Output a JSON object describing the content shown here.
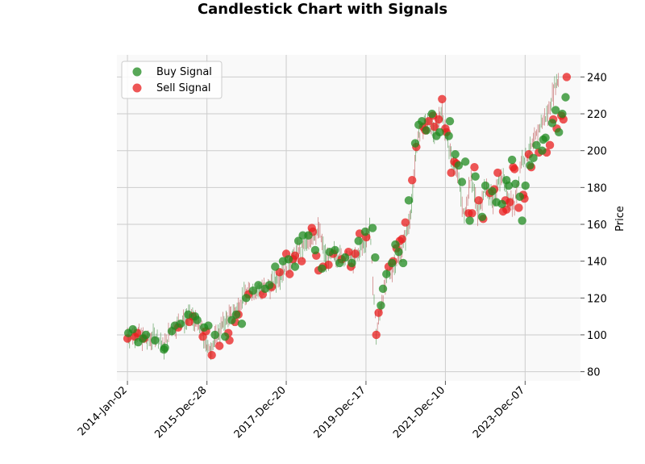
{
  "chart_data": {
    "type": "scatter",
    "title": "Candlestick Chart with Signals",
    "xlabel": "",
    "ylabel": "Price",
    "x_range": [
      "2013-09-28",
      "2025-04-25"
    ],
    "ylim": [
      75,
      252
    ],
    "y_ticks": [
      80,
      100,
      120,
      140,
      160,
      180,
      200,
      220,
      240
    ],
    "x_ticks": [
      "2014-Jan-02",
      "2015-Dec-28",
      "2017-Dec-20",
      "2019-Dec-17",
      "2021-Dec-10",
      "2023-Dec-07"
    ],
    "grid": true,
    "legend_position": "upper-left",
    "colors": {
      "buy": "#1f8a1f",
      "sell": "#e81e1e",
      "wick": "#555555",
      "plot_bg": "#f9f9f9",
      "grid": "#cccccc"
    },
    "price_path": [
      [
        "2014-01-02",
        100
      ],
      [
        "2014-04-01",
        101
      ],
      [
        "2014-07-01",
        97
      ],
      [
        "2014-10-01",
        99
      ],
      [
        "2014-12-01",
        93
      ],
      [
        "2015-02-01",
        103
      ],
      [
        "2015-05-01",
        107
      ],
      [
        "2015-08-01",
        110
      ],
      [
        "2015-11-01",
        103
      ],
      [
        "2016-01-15",
        91
      ],
      [
        "2016-03-01",
        96
      ],
      [
        "2016-06-01",
        107
      ],
      [
        "2016-09-01",
        112
      ],
      [
        "2016-12-01",
        121
      ],
      [
        "2017-03-01",
        124
      ],
      [
        "2017-06-01",
        125
      ],
      [
        "2017-09-01",
        128
      ],
      [
        "2017-12-01",
        136
      ],
      [
        "2018-02-01",
        140
      ],
      [
        "2018-05-01",
        146
      ],
      [
        "2018-08-01",
        152
      ],
      [
        "2018-10-15",
        157
      ],
      [
        "2018-12-20",
        140
      ],
      [
        "2019-03-01",
        144
      ],
      [
        "2019-06-01",
        142
      ],
      [
        "2019-09-01",
        140
      ],
      [
        "2019-12-01",
        150
      ],
      [
        "2020-01-20",
        158
      ],
      [
        "2020-03-20",
        100
      ],
      [
        "2020-05-01",
        116
      ],
      [
        "2020-07-01",
        132
      ],
      [
        "2020-09-01",
        138
      ],
      [
        "2020-11-01",
        146
      ],
      [
        "2021-01-01",
        157
      ],
      [
        "2021-02-15",
        175
      ],
      [
        "2021-03-15",
        200
      ],
      [
        "2021-05-01",
        212
      ],
      [
        "2021-07-01",
        215
      ],
      [
        "2021-09-01",
        210
      ],
      [
        "2021-11-01",
        222
      ],
      [
        "2021-12-15",
        210
      ],
      [
        "2022-02-01",
        195
      ],
      [
        "2022-04-01",
        188
      ],
      [
        "2022-06-01",
        163
      ],
      [
        "2022-08-01",
        188
      ],
      [
        "2022-10-01",
        165
      ],
      [
        "2022-12-01",
        180
      ],
      [
        "2023-03-01",
        172
      ],
      [
        "2023-05-01",
        188
      ],
      [
        "2023-07-01",
        175
      ],
      [
        "2023-09-01",
        170
      ],
      [
        "2023-11-01",
        195
      ],
      [
        "2024-01-01",
        198
      ],
      [
        "2024-03-01",
        205
      ],
      [
        "2024-05-01",
        215
      ],
      [
        "2024-07-01",
        220
      ],
      [
        "2024-09-01",
        235
      ],
      [
        "2024-10-15",
        240
      ]
    ],
    "series": [
      {
        "name": "Buy Signal",
        "points": [
          [
            "2014-01-10",
            101
          ],
          [
            "2014-02-20",
            103
          ],
          [
            "2014-04-10",
            96
          ],
          [
            "2014-05-20",
            98
          ],
          [
            "2014-06-20",
            100
          ],
          [
            "2014-09-10",
            97
          ],
          [
            "2014-12-01",
            92
          ],
          [
            "2014-12-10",
            93
          ],
          [
            "2015-02-10",
            102
          ],
          [
            "2015-03-10",
            105
          ],
          [
            "2015-05-01",
            106
          ],
          [
            "2015-07-10",
            111
          ],
          [
            "2015-09-10",
            110
          ],
          [
            "2015-10-01",
            108
          ],
          [
            "2015-12-01",
            104
          ],
          [
            "2016-01-10",
            105
          ],
          [
            "2016-03-10",
            100
          ],
          [
            "2016-06-10",
            99
          ],
          [
            "2016-08-10",
            108
          ],
          [
            "2016-09-20",
            111
          ],
          [
            "2016-11-10",
            106
          ],
          [
            "2016-12-20",
            120
          ],
          [
            "2017-02-20",
            124
          ],
          [
            "2017-04-10",
            127
          ],
          [
            "2017-06-10",
            125
          ],
          [
            "2017-07-20",
            127
          ],
          [
            "2017-09-10",
            137
          ],
          [
            "2017-11-20",
            140
          ],
          [
            "2018-01-10",
            141
          ],
          [
            "2018-03-10",
            137
          ],
          [
            "2018-04-10",
            151
          ],
          [
            "2018-05-20",
            154
          ],
          [
            "2018-07-10",
            154
          ],
          [
            "2018-09-10",
            146
          ],
          [
            "2018-11-10",
            136
          ],
          [
            "2019-01-20",
            145
          ],
          [
            "2019-03-10",
            146
          ],
          [
            "2019-04-20",
            139
          ],
          [
            "2019-06-10",
            142
          ],
          [
            "2019-08-10",
            139
          ],
          [
            "2019-10-10",
            151
          ],
          [
            "2019-12-10",
            156
          ],
          [
            "2020-02-15",
            158
          ],
          [
            "2020-03-10",
            142
          ],
          [
            "2020-05-01",
            116
          ],
          [
            "2020-05-20",
            125
          ],
          [
            "2020-06-20",
            133
          ],
          [
            "2020-08-10",
            139
          ],
          [
            "2020-09-10",
            149
          ],
          [
            "2020-10-10",
            145
          ],
          [
            "2020-11-20",
            139
          ],
          [
            "2021-01-10",
            173
          ],
          [
            "2021-03-10",
            204
          ],
          [
            "2021-04-10",
            214
          ],
          [
            "2021-05-10",
            216
          ],
          [
            "2021-06-20",
            211
          ],
          [
            "2021-08-10",
            220
          ],
          [
            "2021-09-20",
            208
          ],
          [
            "2021-10-20",
            210
          ],
          [
            "2022-01-10",
            208
          ],
          [
            "2022-01-20",
            216
          ],
          [
            "2022-03-10",
            198
          ],
          [
            "2022-04-10",
            192
          ],
          [
            "2022-05-10",
            183
          ],
          [
            "2022-06-10",
            194
          ],
          [
            "2022-07-20",
            162
          ],
          [
            "2022-09-10",
            186
          ],
          [
            "2022-11-10",
            164
          ],
          [
            "2022-12-10",
            181
          ],
          [
            "2023-02-10",
            178
          ],
          [
            "2023-03-20",
            172
          ],
          [
            "2023-05-10",
            171
          ],
          [
            "2023-06-20",
            184
          ],
          [
            "2023-07-10",
            181
          ],
          [
            "2023-08-10",
            195
          ],
          [
            "2023-09-10",
            182
          ],
          [
            "2023-10-20",
            175
          ],
          [
            "2023-11-10",
            162
          ],
          [
            "2023-12-10",
            181
          ],
          [
            "2024-01-20",
            192
          ],
          [
            "2024-02-20",
            196
          ],
          [
            "2024-03-20",
            203
          ],
          [
            "2024-05-10",
            200
          ],
          [
            "2024-05-20",
            206
          ],
          [
            "2024-06-10",
            207
          ],
          [
            "2024-08-10",
            215
          ],
          [
            "2024-09-10",
            222
          ],
          [
            "2024-10-10",
            210
          ],
          [
            "2024-11-10",
            220
          ],
          [
            "2024-12-10",
            229
          ]
        ]
      },
      {
        "name": "Sell Signal",
        "points": [
          [
            "2014-01-02",
            98
          ],
          [
            "2014-03-10",
            99
          ],
          [
            "2014-04-01",
            101
          ],
          [
            "2014-06-01",
            98
          ],
          [
            "2015-04-10",
            104
          ],
          [
            "2015-07-20",
            107
          ],
          [
            "2015-08-20",
            110
          ],
          [
            "2015-11-20",
            99
          ],
          [
            "2015-12-20",
            102
          ],
          [
            "2016-02-10",
            89
          ],
          [
            "2016-04-20",
            94
          ],
          [
            "2016-07-10",
            101
          ],
          [
            "2016-07-20",
            97
          ],
          [
            "2016-09-10",
            107
          ],
          [
            "2016-10-10",
            111
          ],
          [
            "2017-01-10",
            122
          ],
          [
            "2017-05-20",
            122
          ],
          [
            "2017-08-10",
            126
          ],
          [
            "2017-10-20",
            134
          ],
          [
            "2017-12-20",
            144
          ],
          [
            "2018-01-20",
            133
          ],
          [
            "2018-02-20",
            141
          ],
          [
            "2018-03-10",
            143
          ],
          [
            "2018-05-10",
            140
          ],
          [
            "2018-08-10",
            158
          ],
          [
            "2018-08-20",
            156
          ],
          [
            "2018-09-20",
            143
          ],
          [
            "2018-10-10",
            135
          ],
          [
            "2018-11-20",
            137
          ],
          [
            "2019-01-10",
            138
          ],
          [
            "2019-02-20",
            144
          ],
          [
            "2019-05-10",
            141
          ],
          [
            "2019-07-10",
            145
          ],
          [
            "2019-08-01",
            137
          ],
          [
            "2019-09-10",
            144
          ],
          [
            "2019-10-20",
            155
          ],
          [
            "2019-12-20",
            153
          ],
          [
            "2020-03-20",
            100
          ],
          [
            "2020-04-10",
            112
          ],
          [
            "2020-07-10",
            137
          ],
          [
            "2020-08-20",
            140
          ],
          [
            "2020-09-20",
            147
          ],
          [
            "2020-10-20",
            151
          ],
          [
            "2020-11-10",
            152
          ],
          [
            "2020-12-10",
            161
          ],
          [
            "2021-02-10",
            184
          ],
          [
            "2021-03-20",
            202
          ],
          [
            "2021-05-20",
            213
          ],
          [
            "2021-06-10",
            211
          ],
          [
            "2021-07-10",
            216
          ],
          [
            "2021-08-20",
            219
          ],
          [
            "2021-09-01",
            213
          ],
          [
            "2021-10-10",
            217
          ],
          [
            "2021-11-10",
            228
          ],
          [
            "2021-12-10",
            212
          ],
          [
            "2021-12-20",
            210
          ],
          [
            "2022-02-01",
            188
          ],
          [
            "2022-03-01",
            194
          ],
          [
            "2022-03-20",
            193
          ],
          [
            "2022-07-10",
            166
          ],
          [
            "2022-08-10",
            166
          ],
          [
            "2022-09-01",
            191
          ],
          [
            "2022-10-10",
            173
          ],
          [
            "2022-11-20",
            163
          ],
          [
            "2023-01-20",
            177
          ],
          [
            "2023-03-01",
            179
          ],
          [
            "2023-04-01",
            188
          ],
          [
            "2023-05-20",
            167
          ],
          [
            "2023-06-10",
            173
          ],
          [
            "2023-06-20",
            168
          ],
          [
            "2023-07-20",
            172
          ],
          [
            "2023-08-20",
            191
          ],
          [
            "2023-09-01",
            190
          ],
          [
            "2023-10-10",
            169
          ],
          [
            "2023-11-20",
            176
          ],
          [
            "2023-12-01",
            174
          ],
          [
            "2024-01-10",
            198
          ],
          [
            "2024-02-01",
            191
          ],
          [
            "2024-04-10",
            199
          ],
          [
            "2024-06-20",
            199
          ],
          [
            "2024-07-20",
            203
          ],
          [
            "2024-08-20",
            217
          ],
          [
            "2024-09-20",
            212
          ],
          [
            "2024-11-01",
            219
          ],
          [
            "2024-11-20",
            217
          ],
          [
            "2024-12-20",
            240
          ]
        ]
      }
    ]
  }
}
